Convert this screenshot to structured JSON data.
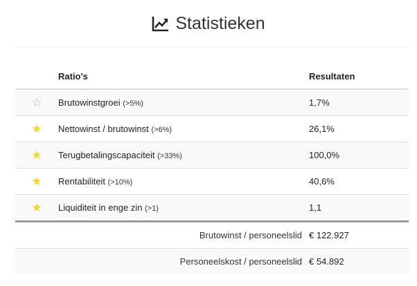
{
  "header": {
    "icon": "line-chart-icon",
    "title": "Statistieken"
  },
  "table": {
    "columns": {
      "ratio": "Ratio's",
      "result": "Resultaten"
    },
    "rows": [
      {
        "starred": false,
        "name": "Brutowinstgroei",
        "threshold": "(>5%)",
        "result": "1,7%"
      },
      {
        "starred": true,
        "name": "Nettowinst / brutowinst",
        "threshold": "(>6%)",
        "result": "26,1%"
      },
      {
        "starred": true,
        "name": "Terugbetalingscapaciteit",
        "threshold": "(>33%)",
        "result": "100,0%"
      },
      {
        "starred": true,
        "name": "Rentabiliteit",
        "threshold": "(>10%)",
        "result": "40,6%"
      },
      {
        "starred": true,
        "name": "Liquiditeit in enge zin",
        "threshold": "(>1)",
        "result": "1,1"
      }
    ],
    "summary": [
      {
        "label": "Brutowinst / personeelslid",
        "value": "€ 122.927"
      },
      {
        "label": "Personeelskost / personeelslid",
        "value": "€ 54.892"
      }
    ]
  },
  "colors": {
    "star_filled": "#f2d52e",
    "star_empty": "#b8b8b8",
    "row_stripe": "#f9f9f9"
  }
}
